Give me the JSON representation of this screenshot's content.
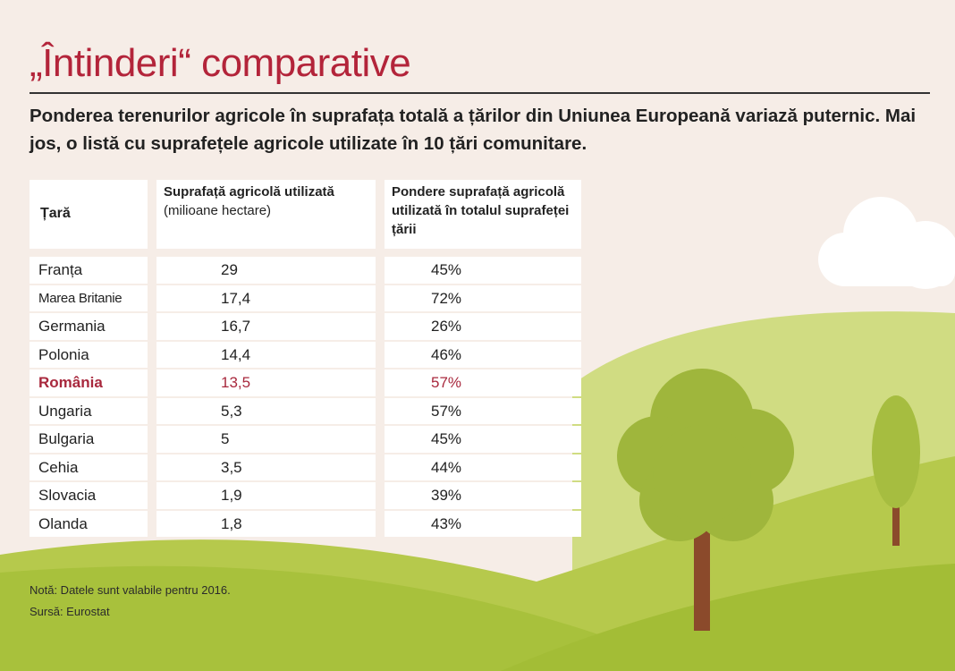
{
  "header": {
    "title": "„Întinderi“ comparative",
    "subtitle": "Ponderea terenurilor agricole în suprafața totală a țărilor din Uniunea Europeană variază puternic. Mai jos, o listă cu suprafețele agricole utilizate în 10 țări comunitare."
  },
  "table": {
    "columns": [
      {
        "title": "Țară"
      },
      {
        "title": "Suprafață agricolă utilizată",
        "unit": "(milioane hectare)"
      },
      {
        "title": "Pondere suprafață agricolă utilizată în totalul suprafeței țării"
      }
    ],
    "rows": [
      [
        "Franța",
        "29",
        "45%"
      ],
      [
        "Marea Britanie",
        "17,4",
        "72%"
      ],
      [
        "Germania",
        "16,7",
        "26%"
      ],
      [
        "Polonia",
        "14,4",
        "46%"
      ],
      [
        "România",
        "13,5",
        "57%"
      ],
      [
        "Ungaria",
        "5,3",
        "57%"
      ],
      [
        "Bulgaria",
        "5",
        "45%"
      ],
      [
        "Cehia",
        "3,5",
        "44%"
      ],
      [
        "Slovacia",
        "1,9",
        "39%"
      ],
      [
        "Olanda",
        "1,8",
        "43%"
      ]
    ]
  },
  "footer": {
    "note": "Notă: Datele sunt valabile pentru 2016.",
    "source": "Sursă: Eurostat"
  }
}
